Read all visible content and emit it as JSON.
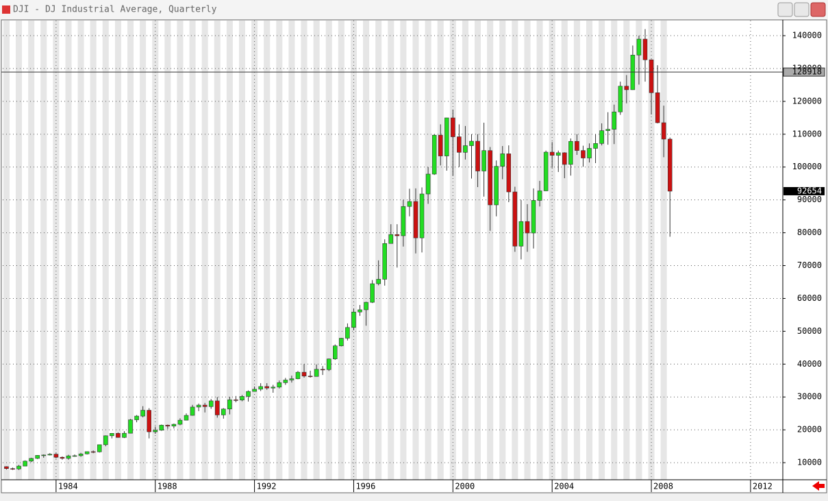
{
  "chart_data": {
    "type": "candlestick",
    "title": "DJI - DJ Industrial Average, Quarterly",
    "x": [
      1982,
      1982.25,
      1982.5,
      1982.75,
      1983,
      1983.25,
      1983.5,
      1983.75,
      1984,
      1984.25,
      1984.5,
      1984.75,
      1985,
      1985.25,
      1985.5,
      1985.75,
      1986,
      1986.25,
      1986.5,
      1986.75,
      1987,
      1987.25,
      1987.5,
      1987.75,
      1988,
      1988.25,
      1988.5,
      1988.75,
      1989,
      1989.25,
      1989.5,
      1989.75,
      1990,
      1990.25,
      1990.5,
      1990.75,
      1991,
      1991.25,
      1991.5,
      1991.75,
      1992,
      1992.25,
      1992.5,
      1992.75,
      1993,
      1993.25,
      1993.5,
      1993.75,
      1994,
      1994.25,
      1994.5,
      1994.75,
      1995,
      1995.25,
      1995.5,
      1995.75,
      1996,
      1996.25,
      1996.5,
      1996.75,
      1997,
      1997.25,
      1997.5,
      1997.75,
      1998,
      1998.25,
      1998.5,
      1998.75,
      1999,
      1999.25,
      1999.5,
      1999.75,
      2000,
      2000.25,
      2000.5,
      2000.75,
      2001,
      2001.25,
      2001.5,
      2001.75,
      2002,
      2002.25,
      2002.5,
      2002.75,
      2003,
      2003.25,
      2003.5,
      2003.75,
      2004,
      2004.25,
      2004.5,
      2004.75,
      2005,
      2005.25,
      2005.5,
      2005.75,
      2006,
      2006.25,
      2006.5,
      2006.75,
      2007,
      2007.25,
      2007.5,
      2007.75,
      2008,
      2008.25,
      2008.5,
      2008.75
    ],
    "open": [
      8800,
      8200,
      8100,
      8960,
      10470,
      11300,
      12220,
      12330,
      12590,
      11650,
      11320,
      12070,
      12120,
      12670,
      13360,
      13290,
      15470,
      18190,
      18930,
      17680,
      18960,
      23050,
      24190,
      25960,
      19390,
      19890,
      21420,
      21130,
      21690,
      22930,
      24400,
      26930,
      27530,
      27070,
      28810,
      24530,
      26340,
      29140,
      29070,
      30170,
      31690,
      32360,
      33190,
      32720,
      33010,
      34360,
      35160,
      35550,
      37540,
      36360,
      36250,
      38430,
      38340,
      41580,
      45560,
      47890,
      51170,
      55870,
      56550,
      58820,
      64480,
      65840,
      76730,
      79450,
      79080,
      88000,
      89520,
      78430,
      91810,
      97860,
      109710,
      103370,
      114970,
      109220,
      104480,
      106510,
      107870,
      98790,
      105020,
      88480,
      100220,
      104040,
      92430,
      75920,
      83420,
      79920,
      89850,
      92750,
      104540,
      103580,
      104350,
      100800,
      107830,
      105040,
      102750,
      105690,
      107180,
      111090,
      111500,
      116790,
      124630,
      123540,
      134090,
      138960,
      132650,
      122630,
      113500,
      108510
    ],
    "high": [
      8900,
      8500,
      9300,
      10700,
      11500,
      12300,
      12500,
      12900,
      12900,
      11900,
      12400,
      12500,
      13000,
      13400,
      13700,
      15500,
      18300,
      19000,
      19200,
      19600,
      23300,
      24500,
      27200,
      26600,
      21000,
      21600,
      21600,
      21900,
      23500,
      25000,
      27600,
      28000,
      28200,
      29400,
      30000,
      26600,
      30000,
      30300,
      30600,
      32000,
      33200,
      34200,
      34200,
      33700,
      35000,
      35800,
      36500,
      37900,
      40000,
      38000,
      39900,
      39400,
      41700,
      46000,
      48000,
      52400,
      56900,
      58000,
      59000,
      65600,
      71600,
      78000,
      82600,
      82600,
      90000,
      93400,
      93500,
      93800,
      100000,
      110000,
      113000,
      115000,
      117500,
      113000,
      112500,
      110000,
      110000,
      113500,
      106100,
      102000,
      106400,
      106600,
      94000,
      90000,
      88700,
      93500,
      95800,
      105000,
      107600,
      105000,
      104500,
      108700,
      110000,
      106500,
      107200,
      110000,
      113300,
      116700,
      119000,
      126000,
      128000,
      137000,
      140000,
      142000,
      132800,
      131000,
      118700,
      109000
    ],
    "low": [
      7900,
      7800,
      7800,
      8960,
      10200,
      11100,
      11500,
      12200,
      11300,
      10900,
      10900,
      11800,
      11800,
      12500,
      12900,
      13100,
      15000,
      17400,
      17600,
      17500,
      18900,
      22300,
      23800,
      17400,
      18800,
      19700,
      20300,
      20400,
      21400,
      22900,
      24300,
      25700,
      25300,
      26400,
      23700,
      23400,
      24700,
      28400,
      28700,
      28600,
      31700,
      31800,
      32200,
      31300,
      32600,
      33700,
      34400,
      35400,
      35900,
      35900,
      36200,
      36700,
      37900,
      41300,
      45400,
      47200,
      50300,
      54700,
      51700,
      58600,
      64000,
      63900,
      76700,
      69400,
      75800,
      85000,
      73700,
      74000,
      88800,
      97600,
      100500,
      98900,
      97300,
      100000,
      102300,
      96500,
      93900,
      91000,
      80600,
      85000,
      96300,
      89300,
      74200,
      71900,
      74200,
      75200,
      88000,
      92700,
      99800,
      98500,
      96600,
      97400,
      103700,
      100100,
      101400,
      101200,
      106600,
      106800,
      107000,
      115900,
      119400,
      123500,
      125100,
      126000,
      116000,
      113300,
      103000,
      78800
    ],
    "close": [
      8200,
      8100,
      8960,
      10470,
      11300,
      12220,
      12330,
      12590,
      11650,
      11320,
      12070,
      12120,
      12670,
      13360,
      13290,
      15470,
      18190,
      18930,
      17680,
      18960,
      23050,
      24190,
      25960,
      19390,
      19890,
      21420,
      21130,
      21690,
      22930,
      24400,
      26930,
      27530,
      27070,
      28810,
      24530,
      26340,
      29140,
      29070,
      30170,
      31690,
      32360,
      33190,
      32720,
      33010,
      34360,
      35160,
      35550,
      37540,
      36360,
      36250,
      38430,
      38340,
      41580,
      45560,
      47890,
      51170,
      55870,
      56550,
      58820,
      64480,
      65840,
      76730,
      79450,
      79080,
      88000,
      89520,
      78430,
      91810,
      97860,
      109710,
      103370,
      114970,
      109220,
      104480,
      106510,
      107870,
      98790,
      105020,
      88480,
      100220,
      104040,
      92430,
      75920,
      83420,
      79920,
      89850,
      92750,
      104540,
      103580,
      104350,
      100800,
      107830,
      105040,
      102750,
      105690,
      107180,
      111090,
      111500,
      116790,
      124630,
      123540,
      134090,
      138960,
      132650,
      122630,
      113500,
      108510,
      92654
    ],
    "up_color": "#22dd22",
    "down_color": "#cc1111",
    "xlim": [
      1981.85,
      2013.3
    ],
    "ylim": [
      4800,
      144600
    ],
    "xticks": [
      1984,
      1988,
      1992,
      1996,
      2000,
      2004,
      2008,
      2012
    ],
    "yticks": [
      10000,
      20000,
      30000,
      40000,
      50000,
      60000,
      70000,
      80000,
      90000,
      100000,
      110000,
      120000,
      130000,
      140000
    ],
    "grid": true,
    "crosshair": 128918,
    "last_price": 92654
  }
}
